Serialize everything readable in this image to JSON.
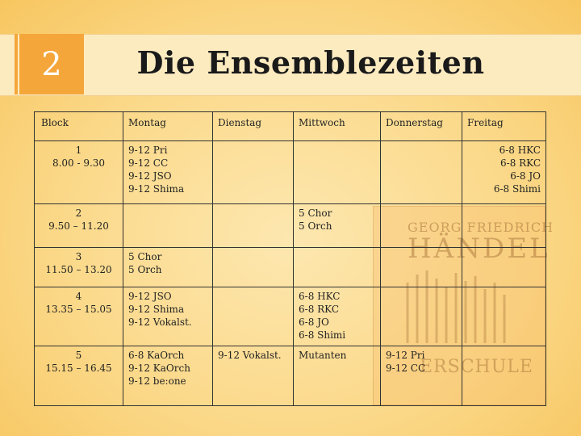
{
  "slide": {
    "number": "2",
    "title": "Die Ensemblezeiten"
  },
  "watermark": {
    "line1": "GEORG FRIEDRICH",
    "line2": "HÄNDEL",
    "line3": "ERSCHULE"
  },
  "table": {
    "headers": [
      "Block",
      "Montag",
      "Dienstag",
      "Mittwoch",
      "Donnerstag",
      "Freitag"
    ],
    "rows": [
      {
        "block": [
          "1",
          "8.00 - 9.30"
        ],
        "montag": [
          "9-12 Pri",
          "9-12 CC",
          "9-12 JSO",
          "9-12 Shima"
        ],
        "freitag": [
          "6-8 HKC",
          "6-8 RKC",
          "6-8 JO",
          "6-8 Shimi"
        ]
      },
      {
        "block": [
          "2",
          "9.50 – 11.20"
        ],
        "mittwoch": [
          "5 Chor",
          "5 Orch"
        ]
      },
      {
        "block": [
          "3",
          "11.50 – 13.20"
        ],
        "montag": [
          "5 Chor",
          "5 Orch"
        ]
      },
      {
        "block": [
          "4",
          "13.35 – 15.05"
        ],
        "montag": [
          "9-12 JSO",
          "9-12 Shima",
          "9-12 Vokalst."
        ],
        "mittwoch": [
          "6-8 HKC",
          "6-8 RKC",
          "6-8 JO",
          "6-8 Shimi"
        ]
      },
      {
        "block": [
          "5",
          "15.15 – 16.45"
        ],
        "montag": [
          "6-8 KaOrch",
          "9-12 KaOrch",
          "9-12 be:one"
        ],
        "dienstag": [
          "9-12 Vokalst."
        ],
        "mittwoch": [
          "Mutanten"
        ],
        "donnerstag": [
          "9-12 Pri",
          "9-12 CC"
        ]
      }
    ]
  },
  "colors": {
    "accent": "#f5a63a",
    "red_text": "#b71c1c",
    "background": "#fbd98a"
  }
}
